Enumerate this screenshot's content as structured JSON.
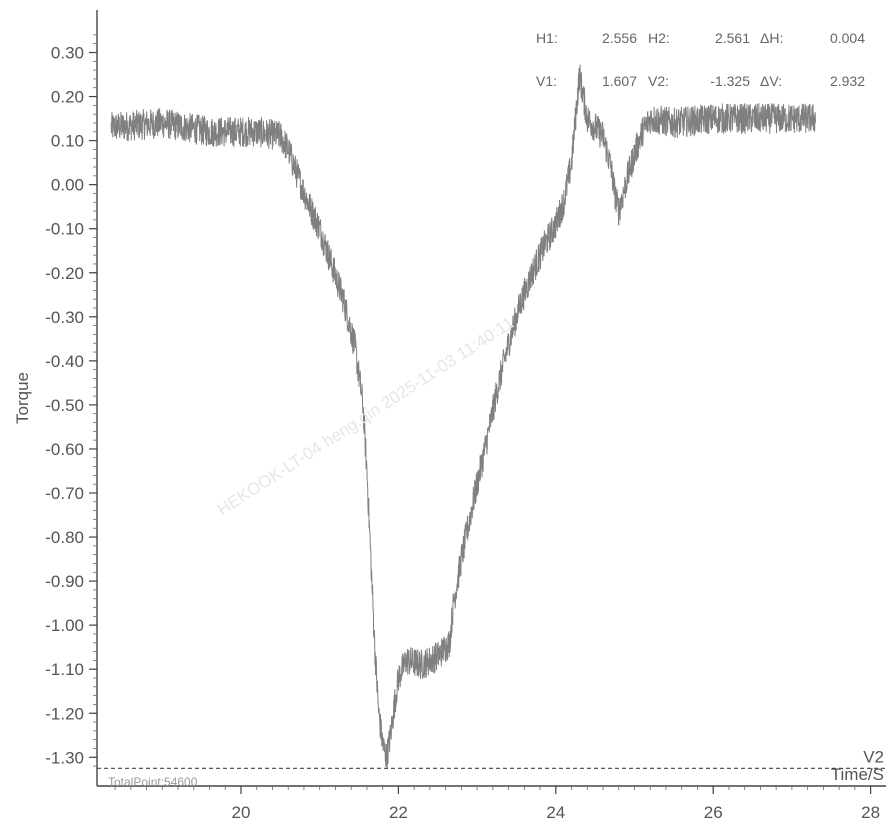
{
  "chart_data": {
    "type": "line",
    "title": "",
    "xlabel": "Time/S",
    "ylabel": "Torque",
    "xlim": [
      18.3,
      28.2
    ],
    "ylim": [
      -1.345,
      0.36
    ],
    "xticks": [
      20,
      22,
      24,
      26,
      28
    ],
    "yticks": [
      0.3,
      0.2,
      0.1,
      0.0,
      -0.1,
      -0.2,
      -0.3,
      -0.4,
      -0.5,
      -0.6,
      -0.7,
      -0.8,
      -0.9,
      -1.0,
      -1.1,
      -1.2,
      -1.3
    ],
    "ytick_labels": [
      "0.30",
      "0.20",
      "0.10",
      "0.00",
      "-0.10",
      "-0.20",
      "-0.30",
      "-0.40",
      "-0.50",
      "-0.60",
      "-0.70",
      "-0.80",
      "-0.90",
      "-1.00",
      "-1.10",
      "-1.20",
      "-1.30"
    ],
    "xtick_labels": [
      "20",
      "22",
      "24",
      "26",
      "28"
    ],
    "grid": false,
    "line_color": "#808080",
    "series": [
      {
        "x": [
          18.35,
          19.0,
          19.6,
          20.2,
          20.5,
          20.6,
          20.7,
          20.85,
          21.0,
          21.15,
          21.3,
          21.45,
          21.55,
          21.6,
          21.65,
          21.7,
          21.75,
          21.8,
          21.85,
          21.9,
          21.95,
          22.0,
          22.1,
          22.3,
          22.5,
          22.65,
          22.7,
          22.8,
          22.95,
          23.1,
          23.25,
          23.4,
          23.55,
          23.7,
          23.85,
          24.0,
          24.1,
          24.2,
          24.25,
          24.3,
          24.4,
          24.5,
          24.6,
          24.7,
          24.75,
          24.8,
          24.9,
          25.0,
          25.1,
          25.2,
          25.5,
          26.0,
          26.5,
          27.0,
          27.3
        ],
        "y": [
          0.13,
          0.14,
          0.12,
          0.12,
          0.11,
          0.08,
          0.03,
          -0.04,
          -0.1,
          -0.18,
          -0.26,
          -0.37,
          -0.5,
          -0.65,
          -0.85,
          -1.05,
          -1.2,
          -1.27,
          -1.3,
          -1.25,
          -1.18,
          -1.12,
          -1.08,
          -1.09,
          -1.07,
          -1.04,
          -0.95,
          -0.85,
          -0.72,
          -0.6,
          -0.47,
          -0.36,
          -0.27,
          -0.2,
          -0.14,
          -0.09,
          -0.04,
          0.05,
          0.15,
          0.25,
          0.15,
          0.13,
          0.11,
          0.04,
          -0.02,
          -0.06,
          0.01,
          0.07,
          0.12,
          0.15,
          0.14,
          0.15,
          0.15,
          0.15,
          0.15
        ]
      }
    ],
    "cursor_line": {
      "label": "V2",
      "y": -1.325
    },
    "readouts": {
      "h1_label": "H1:",
      "h1_value": "2.556",
      "h2_label": "H2:",
      "h2_value": "2.561",
      "dh_label": "ΔH:",
      "dh_value": "0.004",
      "v1_label": "V1:",
      "v1_value": "1.607",
      "v2_label": "V2:",
      "v2_value": "-1.325",
      "dv_label": "ΔV:",
      "dv_value": "2.932"
    },
    "total_point": "TotalPoint:54600",
    "watermark": "HEKOOK-LT-04   heng.qin   2025-11-03   11:40:11"
  }
}
